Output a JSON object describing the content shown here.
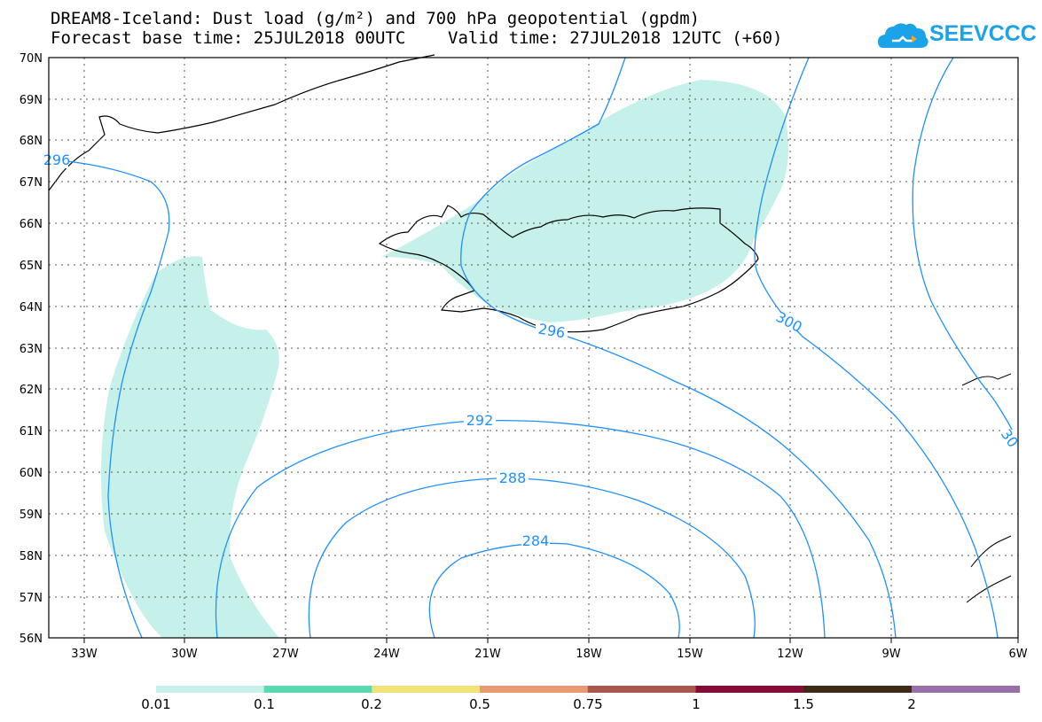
{
  "title_line1": "DREAM8-Iceland: Dust load (g/m²) and 700 hPa geopotential (gpdm)",
  "title_line2_base": "Forecast base time: 25JUL2018 00UTC",
  "title_line2_valid": "Valid time: 27JUL2018 12UTC (+60)",
  "logo": {
    "text": "SEEVCCC",
    "icon": "cloud-icon",
    "color": "#1aa3e8"
  },
  "map": {
    "lon_range": [
      -34.5,
      -6
    ],
    "lat_range": [
      56,
      70
    ],
    "lon_ticks": [
      "33W",
      "30W",
      "27W",
      "24W",
      "21W",
      "18W",
      "15W",
      "12W",
      "9W",
      "6W"
    ],
    "lat_ticks": [
      "56N",
      "57N",
      "58N",
      "59N",
      "60N",
      "61N",
      "62N",
      "63N",
      "64N",
      "65N",
      "66N",
      "67N",
      "68N",
      "69N",
      "70N"
    ],
    "contour_labels": [
      "284",
      "288",
      "292",
      "296",
      "296",
      "300",
      "30"
    ],
    "contour_color": "#1e90ff",
    "dust_fill_color": "#c6f0ea"
  },
  "colorbar": {
    "labels": [
      "0.01",
      "0.1",
      "0.2",
      "0.5",
      "0.75",
      "1",
      "1.5",
      "2"
    ],
    "colors": [
      "#c6f0ea",
      "#5cd8b0",
      "#f2e27a",
      "#e89a72",
      "#a8584e",
      "#820e38",
      "#3d2a17",
      "#9a6ea8"
    ]
  }
}
